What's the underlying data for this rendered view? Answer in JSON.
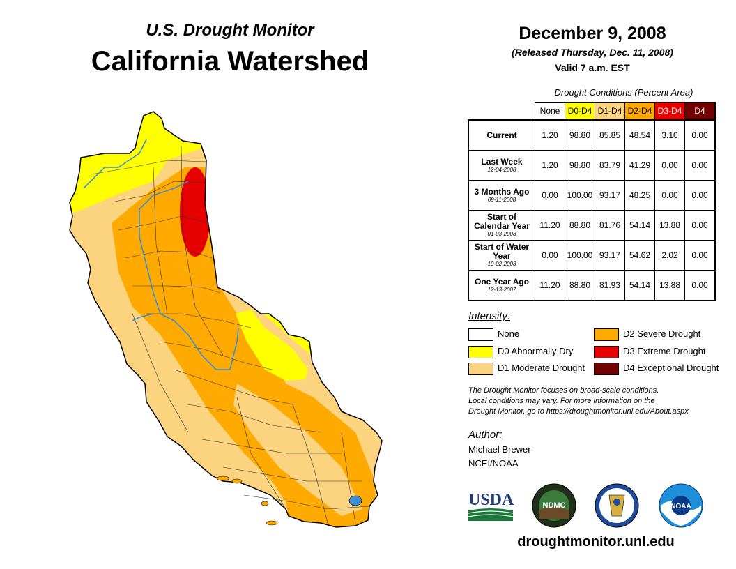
{
  "header": {
    "subtitle": "U.S. Drought Monitor",
    "title": "California Watershed",
    "date": "December 9, 2008",
    "released": "(Released Thursday, Dec. 11, 2008)",
    "valid": "Valid 7 a.m. EST"
  },
  "table": {
    "caption": "Drought Conditions (Percent Area)",
    "columns": [
      {
        "label": "None",
        "bg": "#ffffff",
        "fg": "#000000"
      },
      {
        "label": "D0-D4",
        "bg": "#ffff00",
        "fg": "#000000"
      },
      {
        "label": "D1-D4",
        "bg": "#fcd37f",
        "fg": "#000000"
      },
      {
        "label": "D2-D4",
        "bg": "#ffaa00",
        "fg": "#000000"
      },
      {
        "label": "D3-D4",
        "bg": "#e60000",
        "fg": "#ffffff"
      },
      {
        "label": "D4",
        "bg": "#730000",
        "fg": "#ffffff"
      }
    ],
    "rows": [
      {
        "label": "Current",
        "sub": "",
        "values": [
          "1.20",
          "98.80",
          "85.85",
          "48.54",
          "3.10",
          "0.00"
        ]
      },
      {
        "label": "Last Week",
        "sub": "12-04-2008",
        "values": [
          "1.20",
          "98.80",
          "83.79",
          "41.29",
          "0.00",
          "0.00"
        ]
      },
      {
        "label": "3 Months Ago",
        "sub": "09-11-2008",
        "values": [
          "0.00",
          "100.00",
          "93.17",
          "48.25",
          "0.00",
          "0.00"
        ]
      },
      {
        "label": "Start of Calendar Year",
        "sub": "01-03-2008",
        "values": [
          "11.20",
          "88.80",
          "81.76",
          "54.14",
          "13.88",
          "0.00"
        ]
      },
      {
        "label": "Start of Water Year",
        "sub": "10-02-2008",
        "values": [
          "0.00",
          "100.00",
          "93.17",
          "54.62",
          "2.02",
          "0.00"
        ]
      },
      {
        "label": "One Year Ago",
        "sub": "12-13-2007",
        "values": [
          "11.20",
          "88.80",
          "81.93",
          "54.14",
          "13.88",
          "0.00"
        ]
      }
    ]
  },
  "legend": {
    "title": "Intensity:",
    "items": [
      {
        "label": "None",
        "color": "#ffffff"
      },
      {
        "label": "D0 Abnormally Dry",
        "color": "#ffff00"
      },
      {
        "label": "D1 Moderate Drought",
        "color": "#fcd37f"
      },
      {
        "label": "D2 Severe Drought",
        "color": "#ffaa00"
      },
      {
        "label": "D3 Extreme Drought",
        "color": "#e60000"
      },
      {
        "label": "D4 Exceptional Drought",
        "color": "#730000"
      }
    ]
  },
  "note": {
    "line1": "The Drought Monitor focuses on broad-scale conditions.",
    "line2": "Local conditions may vary. For more information on the",
    "line3": "Drought Monitor, go to https://droughtmonitor.unl.edu/About.aspx"
  },
  "author": {
    "title": "Author:",
    "name": "Michael Brewer",
    "org": "NCEI/NOAA"
  },
  "logos": {
    "usda": "USDA",
    "ndmc": "NDMC",
    "noaa": "NOAA"
  },
  "footer": {
    "website": "droughtmonitor.unl.edu"
  }
}
